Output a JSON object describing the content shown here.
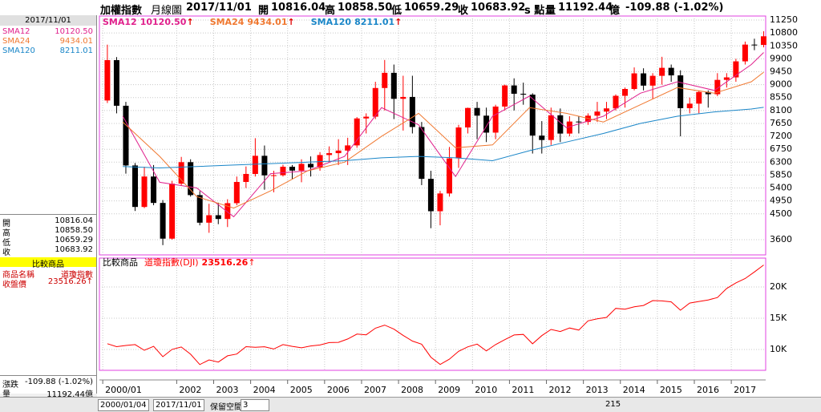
{
  "header": {
    "index": "加權指數",
    "period": "月線圖",
    "date": "2017/11/01",
    "open_label": "開",
    "open": "10816.04",
    "high_label": "高",
    "high": "10858.50",
    "low_label": "低",
    "low": "10659.29",
    "close_label": "收",
    "close": "10683.92",
    "close_unit": "s 點",
    "volume_label": "量",
    "volume": "11192.44",
    "volume_unit": "億",
    "change": "-109.88 (-1.02%)"
  },
  "left_panel": {
    "date": "2017/11/01",
    "compare_title": "比較商品",
    "name_label": "商品名稱",
    "name": "道瓊指數",
    "close_label": "收盤價",
    "change_label": "漲跌"
  },
  "toolbar": {
    "start": "2000/01/04",
    "end": "2017/11/01",
    "reserve_label": "保留空間",
    "reserve": "3",
    "bars": "215"
  },
  "chart_data": [
    {
      "type": "candlestick",
      "up_color": "#ff0000",
      "down_color": "#000000",
      "x": [
        "2000/02",
        "2000/05",
        "2000/08",
        "2000/11",
        "2001/02",
        "2001/05",
        "2001/08",
        "2001/11",
        "2002/02",
        "2002/05",
        "2002/08",
        "2002/11",
        "2003/02",
        "2003/05",
        "2003/08",
        "2003/11",
        "2004/02",
        "2004/05",
        "2004/08",
        "2004/11",
        "2005/02",
        "2005/05",
        "2005/08",
        "2005/11",
        "2006/02",
        "2006/05",
        "2006/08",
        "2006/11",
        "2007/02",
        "2007/05",
        "2007/08",
        "2007/11",
        "2008/02",
        "2008/05",
        "2008/08",
        "2008/11",
        "2009/02",
        "2009/05",
        "2009/08",
        "2009/11",
        "2010/02",
        "2010/05",
        "2010/08",
        "2010/11",
        "2011/02",
        "2011/05",
        "2011/08",
        "2011/11",
        "2012/02",
        "2012/05",
        "2012/08",
        "2012/11",
        "2013/02",
        "2013/05",
        "2013/08",
        "2013/11",
        "2014/02",
        "2014/05",
        "2014/08",
        "2014/11",
        "2015/02",
        "2015/05",
        "2015/08",
        "2015/11",
        "2016/02",
        "2016/05",
        "2016/08",
        "2016/11",
        "2017/02",
        "2017/05",
        "2017/08",
        "2017/11"
      ],
      "open": [
        8448,
        9854,
        8265,
        6185,
        4740,
        5800,
        4880,
        3636,
        5551,
        6300,
        5153,
        4192,
        4452,
        4321,
        4872,
        5611,
        5890,
        6522,
        5840,
        5845,
        6140,
        6006,
        6241,
        6118,
        6548,
        6614,
        6704,
        6884,
        7823,
        7884,
        8883,
        9411,
        8506,
        8572,
        7524,
        5719,
        4591,
        5210,
        6432,
        7509,
        8188,
        7920,
        7329,
        8237,
        8972,
        8683,
        8652,
        7225,
        7072,
        7933,
        7296,
        7715,
        7700,
        7919,
        8062,
        8173,
        8611,
        8849,
        9393,
        8966,
        9307,
        9586,
        9323,
        8181,
        8338,
        8744,
        8666,
        9166,
        9253,
        9811,
        10395,
        10384
      ],
      "high": [
        10393,
        9960,
        8400,
        6270,
        6140,
        6200,
        4980,
        5650,
        6484,
        6400,
        5290,
        4850,
        4890,
        5009,
        5800,
        6150,
        7135,
        6880,
        6000,
        6210,
        6200,
        6400,
        6500,
        6650,
        6850,
        7100,
        7150,
        7870,
        8000,
        9100,
        9860,
        9700,
        9310,
        9310,
        7700,
        6000,
        5300,
        6830,
        7600,
        8200,
        8400,
        8200,
        8300,
        9000,
        9220,
        9070,
        8700,
        7730,
        8200,
        8170,
        7900,
        7900,
        8000,
        8400,
        8400,
        8660,
        8900,
        9600,
        9570,
        9400,
        9970,
        9700,
        9500,
        8550,
        8800,
        8800,
        9400,
        9400,
        9900,
        10500,
        10600,
        10860
      ],
      "low": [
        8360,
        8000,
        5900,
        4600,
        4700,
        4800,
        3410,
        3600,
        5500,
        5100,
        4100,
        3840,
        4140,
        4040,
        4800,
        5400,
        5800,
        5340,
        5250,
        5800,
        5700,
        5600,
        5800,
        6000,
        6300,
        6200,
        6200,
        6800,
        7300,
        7800,
        8100,
        7800,
        7400,
        7300,
        5500,
        4000,
        4100,
        5100,
        6100,
        7300,
        7100,
        7000,
        7100,
        8100,
        8100,
        8300,
        6600,
        6600,
        6900,
        7000,
        7200,
        7300,
        7600,
        7700,
        7800,
        8100,
        8200,
        8800,
        8800,
        8500,
        9000,
        9100,
        7200,
        8000,
        8000,
        8200,
        8600,
        8900,
        9100,
        9700,
        10200,
        10300
      ],
      "close": [
        9854,
        8265,
        6185,
        4740,
        5800,
        4880,
        3636,
        5551,
        6300,
        5153,
        4192,
        4452,
        4321,
        4872,
        5611,
        5890,
        6522,
        5840,
        5845,
        6140,
        6006,
        6241,
        6118,
        6548,
        6614,
        6704,
        6884,
        7823,
        7884,
        8883,
        9411,
        8506,
        8572,
        7524,
        5719,
        4591,
        5210,
        6432,
        7509,
        8188,
        7920,
        7329,
        8237,
        8972,
        8683,
        8652,
        7225,
        7072,
        7933,
        7296,
        7715,
        7700,
        7919,
        8062,
        8173,
        8611,
        8849,
        9393,
        8966,
        9307,
        9586,
        9323,
        8181,
        8338,
        8744,
        8666,
        9166,
        9253,
        9811,
        10395,
        10384,
        10684
      ],
      "series": [
        {
          "name": "SMA12",
          "color": "#e0208c",
          "x": [
            "2000/07",
            "2001/07",
            "2002/07",
            "2003/07",
            "2004/07",
            "2005/07",
            "2006/07",
            "2007/07",
            "2008/07",
            "2009/07",
            "2010/07",
            "2011/07",
            "2012/07",
            "2013/07",
            "2014/07",
            "2015/07",
            "2016/07",
            "2017/07",
            "2017/11"
          ],
          "values": [
            7900,
            5600,
            5400,
            4400,
            5900,
            6000,
            6500,
            8200,
            7600,
            5800,
            7900,
            8600,
            7500,
            7900,
            8700,
            9100,
            8800,
            9700,
            10120.5
          ],
          "last": {
            "value": 10120.5,
            "label": "10120.50"
          },
          "trend": "↑"
        },
        {
          "name": "SMA24",
          "color": "#f07830",
          "x": [
            "2000/07",
            "2001/07",
            "2002/07",
            "2003/07",
            "2004/07",
            "2005/07",
            "2006/07",
            "2007/07",
            "2008/07",
            "2009/07",
            "2010/07",
            "2011/07",
            "2012/07",
            "2013/07",
            "2014/07",
            "2015/07",
            "2016/07",
            "2017/07",
            "2017/11"
          ],
          "values": [
            7700,
            6500,
            5100,
            4700,
            5300,
            6000,
            6300,
            7200,
            8000,
            6800,
            6900,
            8200,
            8000,
            7700,
            8300,
            8900,
            8700,
            9100,
            9434.01
          ],
          "last": {
            "value": 9434.01,
            "label": "9434.01"
          },
          "trend": "↑"
        },
        {
          "name": "SMA120",
          "color": "#1a86c8",
          "x": [
            "2000/07",
            "2001/07",
            "2002/07",
            "2003/07",
            "2004/07",
            "2005/07",
            "2006/07",
            "2007/07",
            "2008/07",
            "2009/07",
            "2010/07",
            "2011/07",
            "2012/07",
            "2013/07",
            "2014/07",
            "2015/07",
            "2016/07",
            "2017/07",
            "2017/11"
          ],
          "values": [
            6150,
            6100,
            6150,
            6200,
            6250,
            6300,
            6350,
            6450,
            6500,
            6450,
            6350,
            6700,
            7000,
            7300,
            7650,
            7900,
            8050,
            8150,
            8211.01
          ],
          "last": {
            "value": 8211.01,
            "label": "8211.01"
          },
          "trend": "↑"
        }
      ],
      "xlim": [
        1999.91,
        2017.93
      ],
      "xticks": [
        {
          "value": 2000,
          "label": "2000/01"
        },
        2002,
        2003,
        2004,
        2005,
        2006,
        2007,
        2008,
        2009,
        2010,
        2011,
        2012,
        2013,
        2014,
        2015,
        2016,
        2017
      ],
      "ylim": [
        3070,
        11390
      ],
      "yticks": [
        3600,
        4500,
        4950,
        5400,
        5850,
        6300,
        6750,
        7200,
        7650,
        8100,
        8550,
        9000,
        9450,
        9900,
        10350,
        10800,
        11250
      ],
      "grid": true
    },
    {
      "type": "line",
      "label": "比較商品",
      "x": [
        "2000/02",
        "2000/05",
        "2000/08",
        "2000/11",
        "2001/02",
        "2001/05",
        "2001/08",
        "2001/11",
        "2002/02",
        "2002/05",
        "2002/08",
        "2002/11",
        "2003/02",
        "2003/05",
        "2003/08",
        "2003/11",
        "2004/02",
        "2004/05",
        "2004/08",
        "2004/11",
        "2005/02",
        "2005/05",
        "2005/08",
        "2005/11",
        "2006/02",
        "2006/05",
        "2006/08",
        "2006/11",
        "2007/02",
        "2007/05",
        "2007/08",
        "2007/11",
        "2008/02",
        "2008/05",
        "2008/08",
        "2008/11",
        "2009/02",
        "2009/05",
        "2009/08",
        "2009/11",
        "2010/02",
        "2010/05",
        "2010/08",
        "2010/11",
        "2011/02",
        "2011/05",
        "2011/08",
        "2011/11",
        "2012/02",
        "2012/05",
        "2012/08",
        "2012/11",
        "2013/02",
        "2013/05",
        "2013/08",
        "2013/11",
        "2014/02",
        "2014/05",
        "2014/08",
        "2014/11",
        "2015/02",
        "2015/05",
        "2015/08",
        "2015/11",
        "2016/02",
        "2016/05",
        "2016/08",
        "2016/11",
        "2017/02",
        "2017/05",
        "2017/08",
        "2017/11"
      ],
      "series": [
        {
          "name": "道瓊指數(DJI)",
          "color": "#ff0000",
          "values": [
            10922,
            10448,
            10650,
            10787,
            9879,
            10502,
            8848,
            10021,
            10404,
            9243,
            7592,
            8342,
            7992,
            8985,
            9275,
            10454,
            10358,
            10435,
            10080,
            10783,
            10504,
            10275,
            10569,
            10718,
            11109,
            11150,
            11679,
            12463,
            12354,
            13408,
            13896,
            13265,
            12263,
            11350,
            10851,
            8776,
            7609,
            8447,
            9712,
            10428,
            10857,
            9774,
            10788,
            11578,
            12320,
            12414,
            10913,
            12218,
            13212,
            12880,
            13437,
            13104,
            14579,
            14910,
            15130,
            16577,
            16458,
            16827,
            17043,
            17823,
            17776,
            17620,
            16285,
            17425,
            17685,
            17930,
            18308,
            19763,
            20663,
            21350,
            22405,
            23516.26
          ],
          "last": {
            "value": 23516.26,
            "label": "23516.26"
          },
          "trend": "↑"
        }
      ],
      "xlim": [
        1999.91,
        2017.93
      ],
      "ylim": [
        6670,
        24620
      ],
      "yticks": [
        {
          "value": 10000,
          "label": "10K"
        },
        {
          "value": 15000,
          "label": "15K"
        },
        {
          "value": 20000,
          "label": "20K"
        }
      ],
      "grid": true
    }
  ]
}
